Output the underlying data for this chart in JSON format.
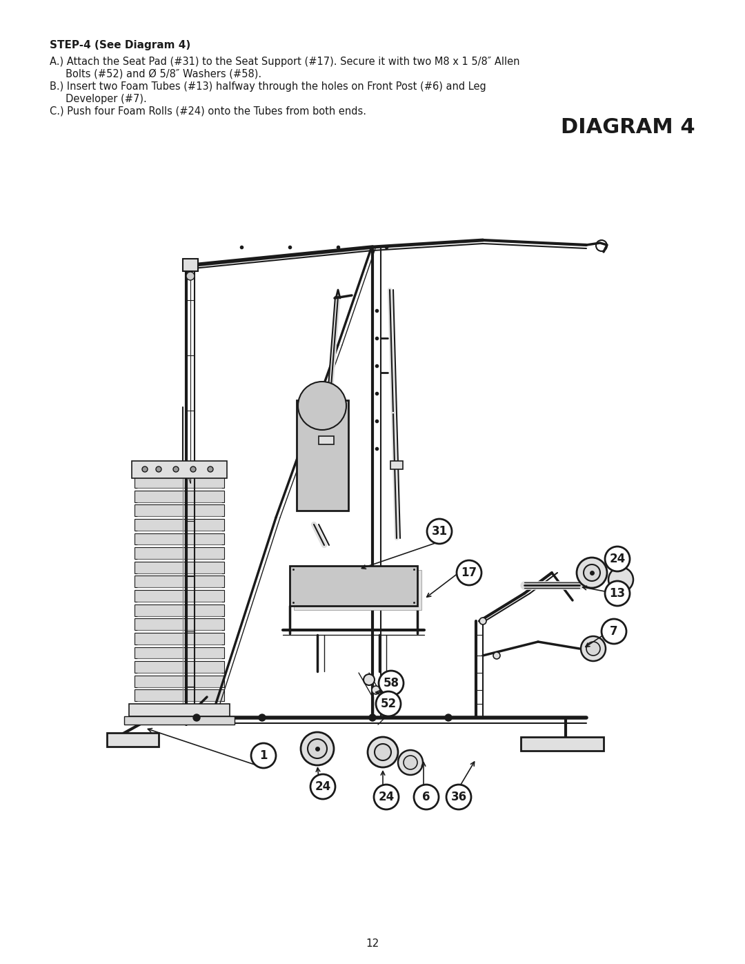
{
  "background_color": "#ffffff",
  "page_width": 10.8,
  "page_height": 13.97,
  "dpi": 100,
  "title": "DIAGRAM 4",
  "step_heading": "STEP-4 (See Diagram 4)",
  "line_A1": "A.) Attach the Seat Pad (#31) to the Seat Support (#17). Secure it with two M8 x 1 5/8″ Allen",
  "line_A2": "     Bolts (#52) and Ø 5/8″ Washers (#58).",
  "line_B1": "B.) Insert two Foam Tubes (#13) halfway through the holes on Front Post (#6) and Leg",
  "line_B2": "     Developer (#7).",
  "line_C": "C.) Push four Foam Rolls (#24) onto the Tubes from both ends.",
  "page_number": "12",
  "color_dark": "#1a1a1a",
  "color_mid": "#555555",
  "color_light": "#aaaaaa",
  "color_plate": "#d8d8d8",
  "color_plate_edge": "#888888",
  "color_metal": "#e0e0e0",
  "color_pad": "#c8c8c8"
}
